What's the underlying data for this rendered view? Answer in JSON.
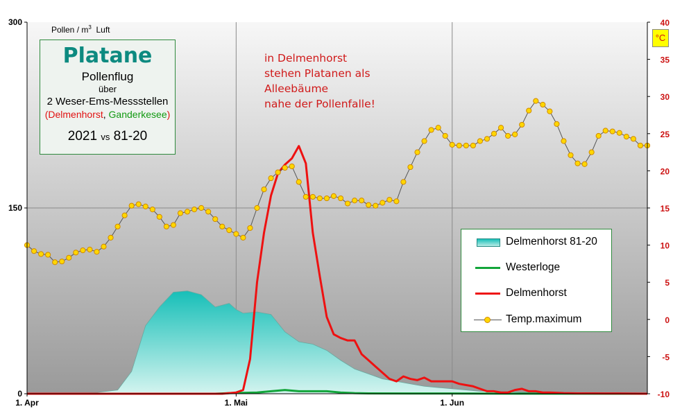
{
  "chart_data": {
    "type": "line",
    "ylabel_left": "Pollen / m",
    "ylabel_left_sup": "3",
    "ylabel_left_tail": "Luft",
    "ylabel_right_unit": "°C",
    "ylim_left": [
      0,
      300
    ],
    "ylim_right": [
      -10,
      40
    ],
    "yticks_left": [
      "0",
      "150",
      "300"
    ],
    "yticks_right": [
      "-10",
      "-5",
      "0",
      "5",
      "10",
      "15",
      "20",
      "25",
      "30",
      "35",
      "40"
    ],
    "x_labels": [
      "1. Apr",
      "1. Mai",
      "1. Jun"
    ],
    "x_range_days": [
      1,
      90
    ],
    "series": [
      {
        "name": "Delmenhorst 81-20",
        "kind": "area",
        "day": [
          1,
          8,
          11,
          14,
          16,
          18,
          20,
          22,
          24,
          26,
          28,
          30,
          31,
          32,
          34,
          36,
          38,
          40,
          42,
          44,
          46,
          48,
          50,
          52,
          54,
          56,
          58,
          60,
          62,
          64,
          66,
          68,
          70,
          72,
          74,
          76,
          78,
          80,
          84,
          90
        ],
        "values": [
          0,
          0,
          1,
          3,
          18,
          55,
          70,
          82,
          83,
          80,
          70,
          73,
          68,
          65,
          66,
          64,
          50,
          42,
          40,
          35,
          27,
          20,
          16,
          12,
          10,
          8,
          6,
          5,
          4,
          3,
          2,
          2,
          1.5,
          1,
          1,
          1,
          0.5,
          0.5,
          0.2,
          0
        ]
      },
      {
        "name": "Westerloge",
        "kind": "line",
        "day": [
          1,
          28,
          30,
          34,
          36,
          38,
          40,
          44,
          46,
          48,
          50,
          56,
          62,
          70,
          90
        ],
        "values": [
          0,
          0,
          0.5,
          1,
          2,
          3,
          2,
          2,
          1,
          0.5,
          0.3,
          0.2,
          0.2,
          0.1,
          0
        ]
      },
      {
        "name": "Delmenhorst",
        "kind": "line",
        "day": [
          1,
          29,
          31,
          32,
          33,
          34,
          35,
          36,
          37,
          38,
          39,
          40,
          41,
          42,
          43,
          44,
          45,
          46,
          47,
          48,
          49,
          50,
          51,
          52,
          53,
          54,
          55,
          56,
          57,
          58,
          59,
          60,
          61,
          62,
          63,
          64,
          65,
          66,
          67,
          68,
          69,
          70,
          71,
          72,
          73,
          74,
          75,
          76,
          78,
          80,
          82,
          84,
          86,
          90
        ],
        "values": [
          0,
          0,
          1,
          3,
          28,
          90,
          130,
          160,
          178,
          185,
          190,
          200,
          186,
          130,
          95,
          62,
          48,
          45,
          43,
          43,
          32,
          27,
          22,
          17,
          12,
          10,
          14,
          12,
          11,
          13,
          10,
          10,
          10,
          10,
          8,
          7,
          6,
          4,
          2,
          2,
          1,
          1,
          3,
          4,
          2,
          2,
          1,
          1,
          0.5,
          0.3,
          0.3,
          0.2,
          0.2,
          0
        ]
      },
      {
        "name": "Temp.maximum",
        "kind": "line-marker",
        "axis": "right",
        "day": [
          1,
          2,
          3,
          4,
          5,
          6,
          7,
          8,
          9,
          10,
          11,
          12,
          13,
          14,
          15,
          16,
          17,
          18,
          19,
          20,
          21,
          22,
          23,
          24,
          25,
          26,
          27,
          28,
          29,
          30,
          31,
          32,
          33,
          34,
          35,
          36,
          37,
          38,
          39,
          40,
          41,
          42,
          43,
          44,
          45,
          46,
          47,
          48,
          49,
          50,
          51,
          52,
          53,
          54,
          55,
          56,
          57,
          58,
          59,
          60,
          61,
          62,
          63,
          64,
          65,
          66,
          67,
          68,
          69,
          70,
          71,
          72,
          73,
          74,
          75,
          76,
          77,
          78,
          79,
          80,
          81,
          82,
          83,
          84,
          85,
          86,
          87,
          88,
          89,
          90
        ],
        "values": [
          10.0,
          9.2,
          8.8,
          8.7,
          7.7,
          7.8,
          8.3,
          9.0,
          9.3,
          9.4,
          9.1,
          9.8,
          11.0,
          12.5,
          14.0,
          15.3,
          15.5,
          15.2,
          14.8,
          13.8,
          12.5,
          12.7,
          14.3,
          14.5,
          14.8,
          15.0,
          14.5,
          13.5,
          12.5,
          12.0,
          11.5,
          11.0,
          12.3,
          15.0,
          17.5,
          19.0,
          19.8,
          20.4,
          20.6,
          18.5,
          16.5,
          16.5,
          16.3,
          16.3,
          16.6,
          16.3,
          15.6,
          16.0,
          16.0,
          15.4,
          15.3,
          15.7,
          16.1,
          15.9,
          18.5,
          20.5,
          22.5,
          24.0,
          25.5,
          25.8,
          24.7,
          23.5,
          23.4,
          23.4,
          23.4,
          24.0,
          24.3,
          25.0,
          25.8,
          24.7,
          24.9,
          26.2,
          28.1,
          29.4,
          28.9,
          28.0,
          26.3,
          24.0,
          22.1,
          21.0,
          20.9,
          22.5,
          24.7,
          25.4,
          25.3,
          25.1,
          24.6,
          24.3,
          23.4,
          23.4
        ]
      }
    ],
    "legend_position": "right"
  },
  "info_box": {
    "title": "Platane",
    "subtitle": "Pollenflug",
    "line1": "über",
    "line2": "2 Weser-Ems-Messstellen",
    "paren_open": "(",
    "station_red": "Delmenhorst",
    "comma": ", ",
    "station_green": "Ganderkesee",
    "paren_close": ")",
    "year": "2021",
    "vs": "vs",
    "period": "81-20"
  },
  "annotation": {
    "lines": [
      "in Delmenhorst",
      "stehen Platanen als",
      "Alleebäume",
      "nahe der Pollenfalle!"
    ]
  },
  "colors": {
    "area_top": "#17bfb8",
    "area_bottom": "#c9f1ec",
    "westerloge": "#12a53a",
    "delmenhorst": "#ee1111",
    "temp_marker": "#ffd700",
    "temp_line": "#555555",
    "right_axis": "#cc1111"
  }
}
